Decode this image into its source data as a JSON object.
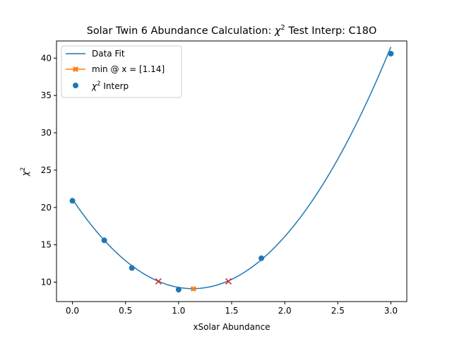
{
  "chart_data": {
    "type": "scatter",
    "title_prefix": "Solar Twin 6 Abundance Calculation: ",
    "title_chi": "χ",
    "title_sup": "2",
    "title_suffix": " Test Interp: C18O",
    "xlabel": "xSolar Abundance",
    "ylabel_chi": "χ",
    "ylabel_sup": "2",
    "xlim": [
      -0.15,
      3.15
    ],
    "ylim": [
      7.4,
      42.3
    ],
    "xticks": [
      0.0,
      0.5,
      1.0,
      1.5,
      2.0,
      2.5,
      3.0
    ],
    "xtick_labels": [
      "0.0",
      "0.5",
      "1.0",
      "1.5",
      "2.0",
      "2.5",
      "3.0"
    ],
    "yticks": [
      10,
      15,
      20,
      25,
      30,
      35,
      40
    ],
    "ytick_labels": [
      "10",
      "15",
      "20",
      "25",
      "30",
      "35",
      "40"
    ],
    "grid": false,
    "legend_position": "top-left",
    "legend": {
      "fit_label": "Data Fit",
      "min_label": "min @ x = [1.14]",
      "interp_chi": "χ",
      "interp_sup": "2",
      "interp_suffix": " Interp"
    },
    "fit_coefficients": [
      21.1,
      -21.1,
      9.3
    ],
    "fit_x_range": [
      0.0,
      3.0
    ],
    "interp_points": [
      {
        "x": 0.0,
        "y": 20.9
      },
      {
        "x": 0.3,
        "y": 15.6
      },
      {
        "x": 0.56,
        "y": 11.9
      },
      {
        "x": 1.0,
        "y": 9.0
      },
      {
        "x": 1.78,
        "y": 13.2
      },
      {
        "x": 3.0,
        "y": 40.6
      }
    ],
    "minimum": {
      "x": 1.14,
      "y": 9.1
    },
    "bound_markers": [
      {
        "x": 0.81,
        "y": 10.1
      },
      {
        "x": 1.47,
        "y": 10.1
      }
    ],
    "colors": {
      "fit": "#1f77b4",
      "interp": "#1f77b4",
      "minimum": "#ff7f0e",
      "bound": "#d62728",
      "axes": "#000000"
    }
  }
}
